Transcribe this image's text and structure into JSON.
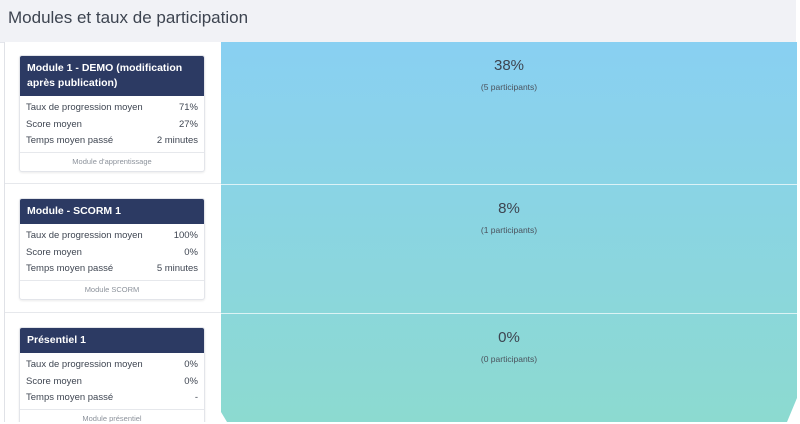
{
  "page": {
    "title": "Modules et taux de participation"
  },
  "colors": {
    "funnel_top": "#89d0f2",
    "funnel_bottom": "#8cdad0",
    "card_header": "#2c3a63"
  },
  "stat_labels": {
    "progress": "Taux de progression moyen",
    "score": "Score moyen",
    "time": "Temps moyen passé"
  },
  "modules": [
    {
      "title": "Module 1 - DEMO (modification après publication)",
      "progress": "71%",
      "score": "27%",
      "time": "2 minutes",
      "type": "Module d'apprentissage",
      "rate": "38%",
      "participants": "(5 participants)"
    },
    {
      "title": "Module - SCORM 1",
      "progress": "100%",
      "score": "0%",
      "time": "5 minutes",
      "type": "Module SCORM",
      "rate": "8%",
      "participants": "(1 participants)"
    },
    {
      "title": "Présentiel 1",
      "progress": "0%",
      "score": "0%",
      "time": "-",
      "type": "Module présentiel",
      "rate": "0%",
      "participants": "(0 participants)"
    }
  ]
}
